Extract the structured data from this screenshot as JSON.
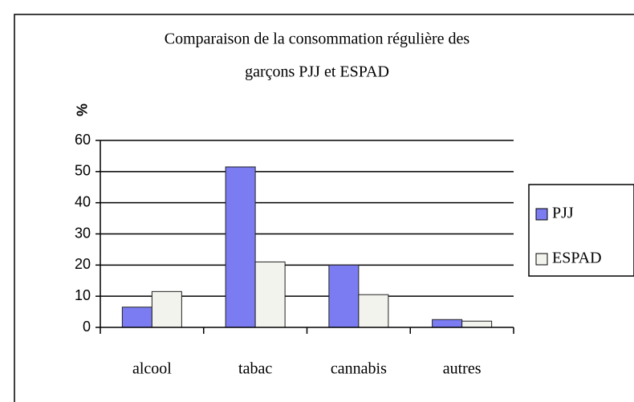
{
  "chart_data": {
    "type": "bar",
    "title": [
      "Comparaison de la consommation régulière des",
      "garçons  PJJ et ESPAD"
    ],
    "y_label": "%",
    "categories": [
      "alcool",
      "tabac",
      "cannabis",
      "autres"
    ],
    "series": [
      {
        "name": "PJJ",
        "color": "#7b7cf2",
        "values": [
          6.5,
          51.5,
          20,
          2.5
        ]
      },
      {
        "name": "ESPAD",
        "color": "#f3f3ee",
        "values": [
          11.5,
          21,
          10.5,
          2
        ]
      }
    ],
    "ylim": [
      0,
      60
    ],
    "yticks": [
      0,
      10,
      20,
      30,
      40,
      50,
      60
    ],
    "grid": true,
    "legend": "right"
  }
}
